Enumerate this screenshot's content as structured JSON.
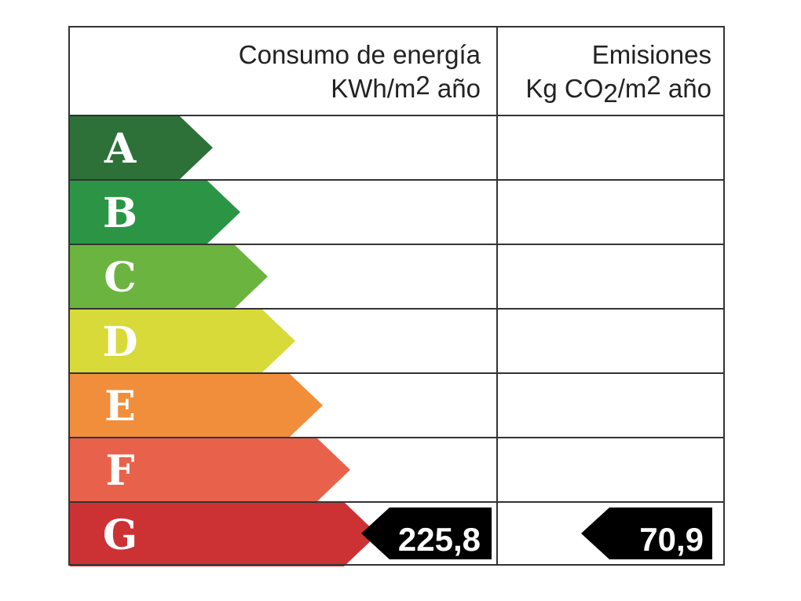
{
  "header": {
    "energy_line1": "Consumo de energía",
    "energy_line2_prefix": "KWh/m",
    "energy_line2_sup": "2",
    "energy_line2_suffix": " año",
    "emissions_line1": "Emisiones",
    "emissions_line2_prefix": "Kg CO",
    "emissions_line2_sub": "2",
    "emissions_line2_mid": "/m",
    "emissions_line2_sup": "2",
    "emissions_line2_suffix": " año"
  },
  "ratings": [
    {
      "letter": "A",
      "color": "#2d7139"
    },
    {
      "letter": "B",
      "color": "#2b9545"
    },
    {
      "letter": "C",
      "color": "#6bb43f"
    },
    {
      "letter": "D",
      "color": "#d8da3a"
    },
    {
      "letter": "E",
      "color": "#f08e3c"
    },
    {
      "letter": "F",
      "color": "#e8624b"
    },
    {
      "letter": "G",
      "color": "#cc3234"
    }
  ],
  "energy_rating": "G",
  "energy_value": "225,8",
  "emissions_rating": "G",
  "emissions_value": "70,9"
}
